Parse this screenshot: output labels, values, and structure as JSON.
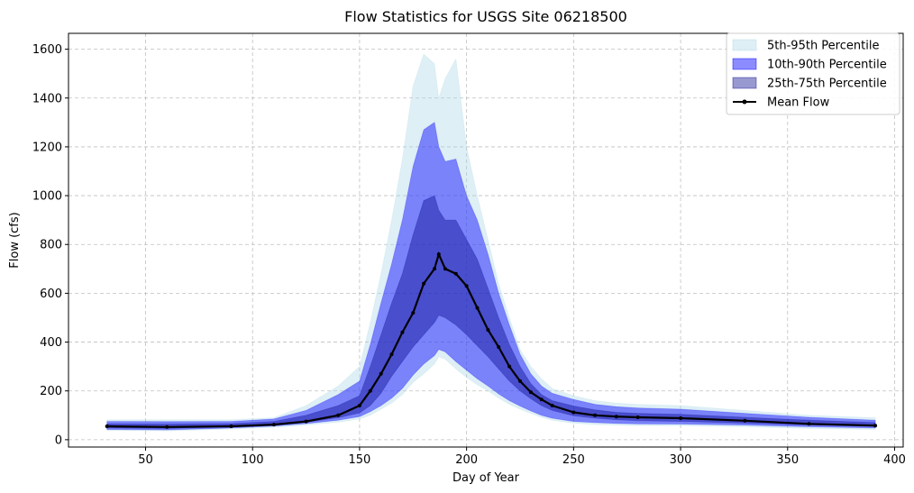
{
  "chart_data": {
    "type": "area",
    "title": "Flow Statistics for USGS Site 06218500",
    "xlabel": "Day of Year",
    "ylabel": "Flow (cfs)",
    "xlim": [
      14,
      404
    ],
    "ylim": [
      -30,
      1665
    ],
    "xticks": [
      50,
      100,
      150,
      200,
      250,
      300,
      350,
      400
    ],
    "yticks": [
      0,
      200,
      400,
      600,
      800,
      1000,
      1200,
      1400,
      1600
    ],
    "grid": true,
    "legend_position": "top-right",
    "x": [
      32,
      60,
      90,
      110,
      125,
      140,
      150,
      155,
      160,
      165,
      170,
      175,
      180,
      185,
      187,
      190,
      195,
      200,
      205,
      210,
      215,
      220,
      225,
      230,
      235,
      240,
      250,
      260,
      270,
      280,
      300,
      330,
      360,
      391
    ],
    "series": [
      {
        "name": "5th-95th Percentile",
        "kind": "band",
        "color": "#add8e6",
        "opacity": 0.4,
        "lower": [
          38,
          36,
          44,
          50,
          60,
          72,
          85,
          100,
          125,
          150,
          185,
          235,
          270,
          310,
          340,
          330,
          290,
          255,
          225,
          200,
          170,
          145,
          125,
          108,
          92,
          80,
          68,
          62,
          60,
          58,
          58,
          53,
          46,
          42
        ],
        "upper": [
          82,
          82,
          82,
          90,
          140,
          220,
          300,
          480,
          680,
          900,
          1150,
          1450,
          1580,
          1540,
          1400,
          1480,
          1560,
          1200,
          1000,
          820,
          640,
          500,
          370,
          300,
          250,
          210,
          180,
          160,
          150,
          145,
          140,
          120,
          100,
          90
        ]
      },
      {
        "name": "10th-90th Percentile",
        "kind": "band",
        "color": "#0000ff",
        "opacity": 0.45,
        "lower": [
          42,
          40,
          48,
          56,
          66,
          80,
          95,
          115,
          140,
          170,
          210,
          265,
          310,
          345,
          370,
          360,
          320,
          285,
          250,
          220,
          188,
          160,
          138,
          118,
          100,
          88,
          75,
          70,
          67,
          65,
          64,
          60,
          53,
          48
        ],
        "upper": [
          75,
          74,
          75,
          85,
          120,
          185,
          240,
          390,
          560,
          720,
          900,
          1120,
          1270,
          1300,
          1200,
          1140,
          1150,
          1000,
          900,
          760,
          600,
          470,
          350,
          270,
          220,
          190,
          165,
          145,
          135,
          130,
          125,
          108,
          92,
          80
        ]
      },
      {
        "name": "25th-75th Percentile",
        "kind": "band",
        "color": "#00008b",
        "opacity": 0.4,
        "lower": [
          48,
          46,
          52,
          60,
          72,
          90,
          110,
          140,
          190,
          260,
          320,
          380,
          430,
          480,
          510,
          500,
          470,
          430,
          385,
          340,
          290,
          240,
          200,
          168,
          140,
          120,
          98,
          88,
          82,
          78,
          75,
          68,
          60,
          54
        ],
        "upper": [
          65,
          64,
          66,
          75,
          100,
          140,
          180,
          300,
          430,
          560,
          680,
          840,
          980,
          1000,
          940,
          900,
          900,
          820,
          740,
          620,
          500,
          390,
          300,
          230,
          185,
          160,
          138,
          122,
          112,
          108,
          104,
          92,
          80,
          70
        ]
      },
      {
        "name": "Mean Flow",
        "kind": "line",
        "color": "#000000",
        "values": [
          55,
          52,
          55,
          62,
          75,
          100,
          140,
          200,
          270,
          350,
          440,
          520,
          640,
          700,
          760,
          700,
          680,
          630,
          540,
          450,
          380,
          300,
          240,
          195,
          165,
          140,
          112,
          100,
          95,
          92,
          88,
          78,
          65,
          58
        ]
      }
    ]
  }
}
